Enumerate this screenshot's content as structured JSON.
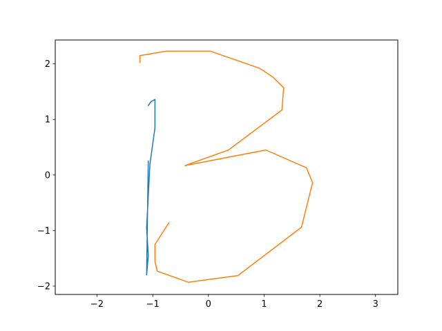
{
  "chart_data": {
    "type": "line",
    "title": "",
    "xlabel": "",
    "ylabel": "",
    "xlim": [
      -2.75,
      3.4
    ],
    "ylim": [
      -2.15,
      2.43
    ],
    "grid": false,
    "x_ticks": [
      -2,
      -1,
      0,
      1,
      2,
      3
    ],
    "y_ticks": [
      -2,
      -1,
      0,
      1,
      2
    ],
    "x_tick_labels": [
      "−2",
      "−1",
      "0",
      "1",
      "2",
      "3"
    ],
    "y_tick_labels": [
      "−2",
      "−1",
      "0",
      "1",
      "2"
    ],
    "series": [
      {
        "color": "#1f77b4",
        "points": [
          [
            -1.08,
            1.25
          ],
          [
            -1.03,
            1.32
          ],
          [
            -0.96,
            1.36
          ],
          [
            -0.96,
            0.85
          ],
          [
            -1.05,
            0.2
          ],
          [
            -1.11,
            -0.95
          ],
          [
            -1.08,
            -1.45
          ],
          [
            -1.11,
            -1.8
          ],
          [
            -1.08,
            0.25
          ]
        ]
      },
      {
        "color": "#ff7f0e",
        "points": [
          [
            -1.23,
            2.03
          ],
          [
            -1.23,
            2.15
          ],
          [
            -0.75,
            2.23
          ],
          [
            0.03,
            2.23
          ],
          [
            0.92,
            1.92
          ],
          [
            1.15,
            1.77
          ],
          [
            1.35,
            1.57
          ],
          [
            1.32,
            1.17
          ],
          [
            0.36,
            0.45
          ],
          [
            -0.42,
            0.17
          ],
          [
            1.03,
            0.45
          ],
          [
            1.76,
            0.13
          ],
          [
            1.87,
            -0.14
          ],
          [
            1.67,
            -0.94
          ],
          [
            0.53,
            -1.81
          ],
          [
            -0.36,
            -1.93
          ],
          [
            -0.92,
            -1.73
          ],
          [
            -0.96,
            -1.55
          ],
          [
            -0.96,
            -1.25
          ],
          [
            -0.71,
            -0.86
          ]
        ]
      }
    ]
  }
}
